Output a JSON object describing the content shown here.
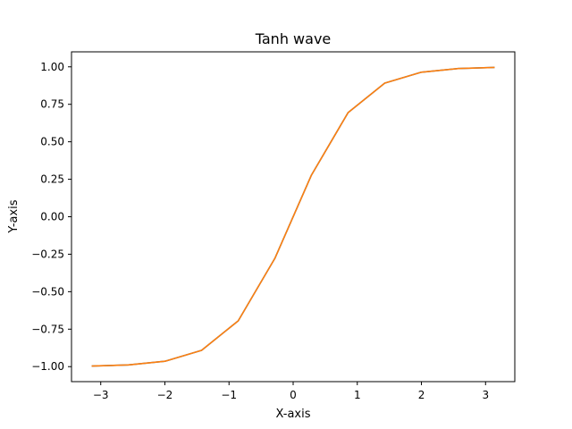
{
  "chart_data": {
    "type": "line",
    "title": "Tanh wave",
    "xlabel": "X-axis",
    "ylabel": "Y-axis",
    "xlim": [
      -3.456,
      3.456
    ],
    "ylim": [
      -1.1,
      1.1
    ],
    "x_ticks": [
      -3,
      -2,
      -1,
      0,
      1,
      2,
      3
    ],
    "x_tick_labels": [
      "−3",
      "−2",
      "−1",
      "0",
      "1",
      "2",
      "3"
    ],
    "y_ticks": [
      -1.0,
      -0.75,
      -0.5,
      -0.25,
      0.0,
      0.25,
      0.5,
      0.75,
      1.0
    ],
    "y_tick_labels": [
      "−1.00",
      "−0.75",
      "−0.50",
      "−0.25",
      "0.00",
      "0.25",
      "0.50",
      "0.75",
      "1.00"
    ],
    "grid": false,
    "series": [
      {
        "color": "#1f77b4",
        "x": [
          -3.1416,
          -2.5703,
          -1.9992,
          -1.428,
          -0.8568,
          -0.2856,
          0.2856,
          0.8568,
          1.428,
          1.9992,
          2.5703,
          3.1416
        ],
        "y": [
          -0.9963,
          -0.9884,
          -0.9641,
          -0.8912,
          -0.6945,
          -0.2781,
          0.2781,
          0.6945,
          0.8912,
          0.9641,
          0.9884,
          0.9963
        ]
      },
      {
        "color": "#ff7f0e",
        "x": [
          -3.1416,
          -2.5703,
          -1.9992,
          -1.428,
          -0.8568,
          -0.2856,
          0.2856,
          0.8568,
          1.428,
          1.9992,
          2.5703,
          3.1416
        ],
        "y": [
          -0.9963,
          -0.9884,
          -0.9641,
          -0.8912,
          -0.6945,
          -0.2781,
          0.2781,
          0.6945,
          0.8912,
          0.9641,
          0.9884,
          0.9963
        ]
      }
    ]
  }
}
